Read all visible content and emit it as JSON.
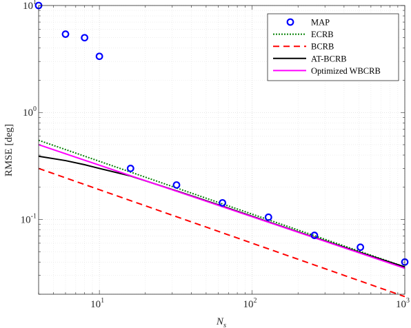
{
  "chart_data": {
    "type": "line",
    "xlabel": "N",
    "xlabel_sub": "s",
    "ylabel": "RMSE [deg]",
    "xscale": "log",
    "yscale": "log",
    "xlim": [
      4,
      1000
    ],
    "ylim": [
      0.02,
      10
    ],
    "grid": true,
    "legend_position": "top-right",
    "x_ticks": [
      {
        "value": 10,
        "base": "10",
        "exp": "1"
      },
      {
        "value": 100,
        "base": "10",
        "exp": "2"
      },
      {
        "value": 1000,
        "base": "10",
        "exp": "3"
      }
    ],
    "y_ticks": [
      {
        "value": 0.1,
        "base": "10",
        "exp": "-1"
      },
      {
        "value": 1,
        "base": "10",
        "exp": "0"
      },
      {
        "value": 10,
        "base": "10",
        "exp": "1"
      }
    ],
    "series": [
      {
        "name": "MAP",
        "style": "marker",
        "color": "#0000ff",
        "x": [
          4,
          6,
          8,
          10,
          16,
          32,
          64,
          128,
          256,
          512,
          1000
        ],
        "y": [
          10.0,
          5.4,
          5.0,
          3.35,
          0.3,
          0.21,
          0.143,
          0.105,
          0.071,
          0.055,
          0.04
        ]
      },
      {
        "name": "ECRB",
        "style": "dotted",
        "color": "#007f00",
        "x": [
          4,
          1000
        ],
        "y": [
          0.55,
          0.036
        ]
      },
      {
        "name": "BCRB",
        "style": "dashed",
        "color": "#ff0000",
        "x": [
          4,
          1000
        ],
        "y": [
          0.3,
          0.019
        ]
      },
      {
        "name": "AT-BCRB",
        "style": "solid",
        "color": "#000000",
        "x": [
          4,
          6,
          8,
          10,
          16,
          32,
          64,
          128,
          256,
          512,
          1000
        ],
        "y": [
          0.39,
          0.355,
          0.325,
          0.3,
          0.255,
          0.185,
          0.133,
          0.095,
          0.068,
          0.049,
          0.036
        ]
      },
      {
        "name": "Optimized WBCRB",
        "style": "solid",
        "color": "#ff00ff",
        "x": [
          4,
          1000
        ],
        "y": [
          0.5,
          0.035
        ]
      }
    ]
  }
}
